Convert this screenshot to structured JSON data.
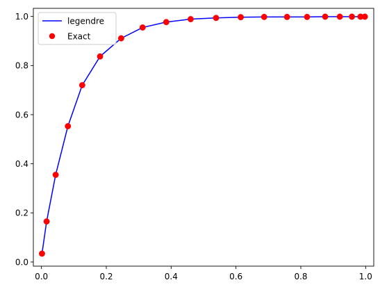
{
  "chart_data": {
    "type": "line",
    "xlim": [
      -0.025,
      1.025
    ],
    "ylim": [
      -0.017,
      1.033
    ],
    "x_ticks": [
      0.0,
      0.2,
      0.4,
      0.6,
      0.8,
      1.0
    ],
    "y_ticks": [
      0.0,
      0.2,
      0.4,
      0.6,
      0.8,
      1.0
    ],
    "x_tick_labels": [
      "0.0",
      "0.2",
      "0.4",
      "0.6",
      "0.8",
      "1.0"
    ],
    "y_tick_labels": [
      "0.0",
      "0.2",
      "0.4",
      "0.6",
      "0.8",
      "1.0"
    ],
    "grid": false,
    "legend_position": "top-left",
    "x": [
      0.0017,
      0.0159,
      0.0438,
      0.0816,
      0.1258,
      0.1808,
      0.2459,
      0.3121,
      0.385,
      0.4603,
      0.5386,
      0.6148,
      0.687,
      0.7575,
      0.8193,
      0.8752,
      0.9203,
      0.9576,
      0.9841,
      0.9976
    ],
    "series": [
      {
        "name": "legendre",
        "style": "line",
        "color": "#0000ff",
        "values": [
          0.034,
          0.165,
          0.355,
          0.553,
          0.72,
          0.837,
          0.911,
          0.955,
          0.977,
          0.989,
          0.994,
          0.997,
          0.998,
          0.998,
          0.998,
          0.999,
          0.999,
          0.999,
          0.999,
          0.999
        ]
      },
      {
        "name": "Exact",
        "style": "marker",
        "color": "#ff0000",
        "values": [
          0.034,
          0.165,
          0.355,
          0.553,
          0.72,
          0.837,
          0.911,
          0.955,
          0.977,
          0.989,
          0.994,
          0.997,
          0.998,
          0.998,
          0.998,
          0.999,
          0.999,
          0.999,
          0.999,
          0.999
        ]
      }
    ]
  }
}
